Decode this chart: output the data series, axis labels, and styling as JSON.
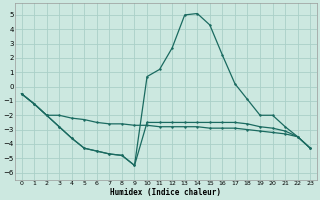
{
  "xlabel": "Humidex (Indice chaleur)",
  "bg_color": "#cce8e0",
  "grid_color": "#aad0c8",
  "line_color": "#1a6a60",
  "xlim": [
    -0.5,
    23.5
  ],
  "ylim": [
    -6.5,
    5.8
  ],
  "yticks": [
    -6,
    -5,
    -4,
    -3,
    -2,
    -1,
    0,
    1,
    2,
    3,
    4,
    5
  ],
  "xticks": [
    0,
    1,
    2,
    3,
    4,
    5,
    6,
    7,
    8,
    9,
    10,
    11,
    12,
    13,
    14,
    15,
    16,
    17,
    18,
    19,
    20,
    21,
    22,
    23
  ],
  "line1_x": [
    0,
    1,
    2,
    3,
    4,
    5,
    6,
    7,
    8,
    9,
    10,
    11,
    12,
    13,
    14,
    15,
    16,
    17,
    18,
    19,
    20,
    21,
    22,
    23
  ],
  "line1_y": [
    -0.5,
    -1.2,
    -2.0,
    -2.0,
    -2.2,
    -2.3,
    -2.5,
    -2.6,
    -2.6,
    -2.7,
    -2.7,
    -2.8,
    -2.8,
    -2.8,
    -2.8,
    -2.9,
    -2.9,
    -2.9,
    -3.0,
    -3.1,
    -3.2,
    -3.3,
    -3.5,
    -4.3
  ],
  "line2_x": [
    0,
    1,
    2,
    3,
    4,
    5,
    6,
    7,
    8,
    9,
    10,
    11,
    12,
    13,
    14,
    15,
    16,
    17,
    18,
    19,
    20,
    21,
    22,
    23
  ],
  "line2_y": [
    -0.5,
    -1.2,
    -2.0,
    -2.8,
    -3.6,
    -4.3,
    -4.5,
    -4.7,
    -4.8,
    -5.5,
    -2.5,
    -2.5,
    -2.5,
    -2.5,
    -2.5,
    -2.5,
    -2.5,
    -2.5,
    -2.6,
    -2.8,
    -2.9,
    -3.1,
    -3.5,
    -4.3
  ],
  "line3_x": [
    0,
    1,
    2,
    3,
    4,
    5,
    6,
    7,
    8,
    9,
    10,
    11,
    12,
    13,
    14,
    15,
    16,
    17,
    18,
    19,
    20,
    21,
    22,
    23
  ],
  "line3_y": [
    -0.5,
    -1.2,
    -2.0,
    -2.8,
    -3.6,
    -4.3,
    -4.5,
    -4.7,
    -4.8,
    -5.5,
    0.7,
    1.2,
    2.7,
    5.0,
    5.1,
    4.3,
    2.2,
    0.2,
    -0.9,
    -2.0,
    -2.0,
    -2.8,
    -3.5,
    -4.3
  ]
}
